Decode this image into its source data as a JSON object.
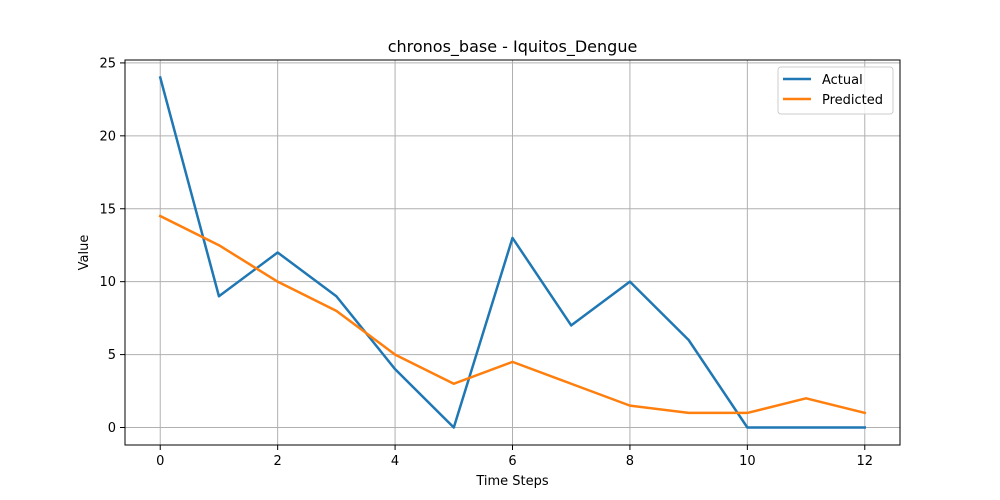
{
  "chart_data": {
    "type": "line",
    "title": "chronos_base - Iquitos_Dengue",
    "xlabel": "Time Steps",
    "ylabel": "Value",
    "x": [
      0,
      1,
      2,
      3,
      4,
      5,
      6,
      7,
      8,
      9,
      10,
      11,
      12
    ],
    "xlim": [
      -0.6,
      12.6
    ],
    "ylim": [
      -1.2,
      25.2
    ],
    "xticks": [
      0,
      2,
      4,
      6,
      8,
      10,
      12
    ],
    "yticks": [
      0,
      5,
      10,
      15,
      20,
      25
    ],
    "grid": true,
    "legend_position": "top-right",
    "series": [
      {
        "name": "Actual",
        "color": "#1f77b4",
        "values": [
          24,
          9,
          12,
          9,
          4,
          0,
          13,
          7,
          10,
          6,
          0,
          0,
          0
        ]
      },
      {
        "name": "Predicted",
        "color": "#ff7f0e",
        "values": [
          14.5,
          12.5,
          10,
          8,
          5,
          3,
          4.5,
          3,
          1.5,
          1,
          1,
          2,
          1
        ]
      }
    ]
  }
}
